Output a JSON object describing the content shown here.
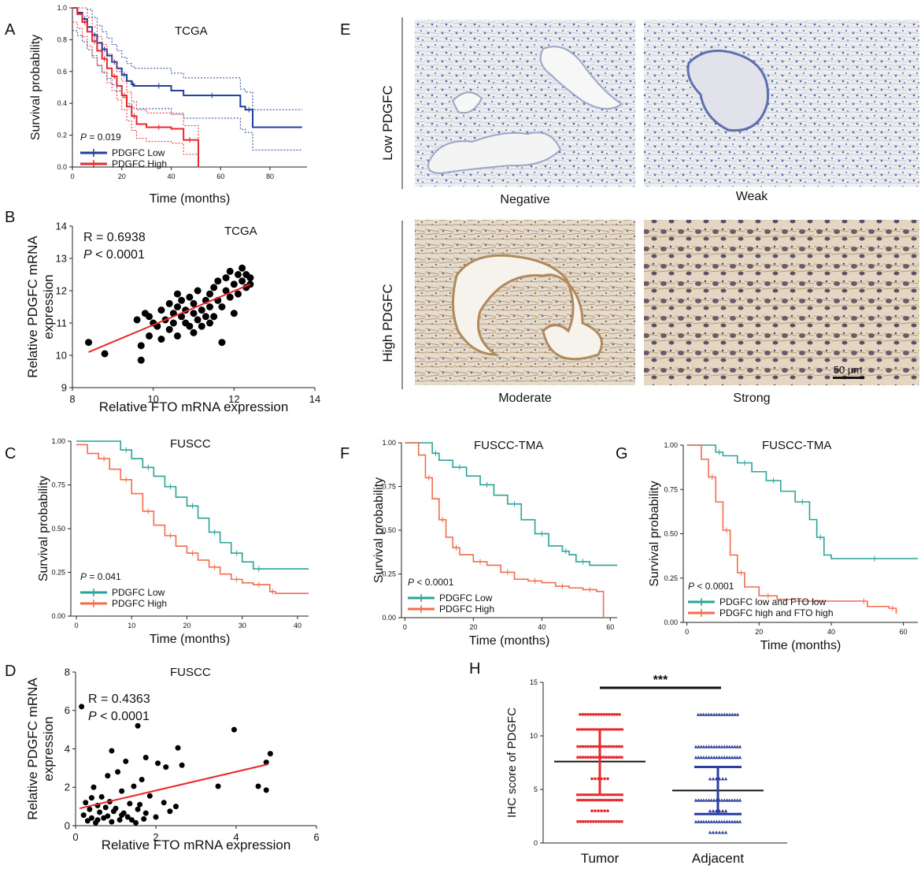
{
  "panels": {
    "A": {
      "letter": "A",
      "title": "TCGA",
      "xlabel": "Time (months)",
      "ylabel": "Survival probability",
      "pvalue_label": "P",
      "pvalue_text": " = 0.019"
    },
    "B": {
      "letter": "B",
      "title": "TCGA",
      "xlabel": "Relative FTO mRNA expression",
      "ylabel_line1": "Relative PDGFC mRNA",
      "ylabel_line2": "expression",
      "stat_r": "R = 0.6938",
      "stat_p_label": "P",
      "stat_p_text": " < 0.0001"
    },
    "C": {
      "letter": "C",
      "title": "FUSCC",
      "xlabel": "Time (months)",
      "ylabel": "Survival probability",
      "pvalue_label": "P",
      "pvalue_text": " = 0.041"
    },
    "D": {
      "letter": "D",
      "title": "FUSCC",
      "xlabel": "Relative FTO mRNA expression",
      "ylabel_line1": "Relative PDGFC mRNA",
      "ylabel_line2": "expression",
      "stat_r": "R = 0.4363",
      "stat_p_label": "P",
      "stat_p_text": " < 0.0001"
    },
    "E": {
      "letter": "E",
      "row_low": "Low PDGFC",
      "row_high": "High  PDGFC",
      "captions": [
        "Negative",
        "Weak",
        "Moderate",
        "Strong"
      ],
      "scalebar": "50 μm"
    },
    "F": {
      "letter": "F",
      "title": "FUSCC-TMA",
      "xlabel": "Time (months)",
      "ylabel": "Survival probability",
      "pvalue_label": "P",
      "pvalue_text": " < 0.0001"
    },
    "G": {
      "letter": "G",
      "title": "FUSCC-TMA",
      "xlabel": "Time (months)",
      "ylabel": "Survival probability",
      "pvalue_label": "P",
      "pvalue_text": " < 0.0001"
    },
    "H": {
      "letter": "H",
      "ylabel": "IHC score  of PDGFC",
      "significance": "***"
    }
  },
  "colors": {
    "low_tcga": "#1f3f99",
    "high_tcga": "#e8262b",
    "low_fuscc": "#2aa39a",
    "high_fuscc": "#f26c4f",
    "scatter_point": "#000000",
    "fit_line": "#e8262b",
    "tumor": "#e8262b",
    "adjacent": "#2c3fa0"
  },
  "chart_data": [
    {
      "id": "A",
      "type": "line",
      "title": "TCGA",
      "xlabel": "Time (months)",
      "ylabel": "Survival probability",
      "xlim": [
        0,
        95
      ],
      "ylim": [
        0,
        1
      ],
      "xticks": [
        0,
        20,
        40,
        60,
        80
      ],
      "yticks": [
        "0.0",
        "0.2",
        "0.4",
        "0.6",
        "0.8",
        "1.0"
      ],
      "series": [
        {
          "name": "PDGFC Low",
          "x": [
            0,
            2,
            4,
            6,
            8,
            10,
            12,
            14,
            16,
            18,
            20,
            22,
            24,
            25,
            30,
            40,
            45,
            68,
            70,
            73,
            93
          ],
          "y": [
            1,
            0.97,
            0.93,
            0.88,
            0.83,
            0.78,
            0.74,
            0.7,
            0.66,
            0.62,
            0.58,
            0.54,
            0.52,
            0.51,
            0.51,
            0.48,
            0.45,
            0.38,
            0.36,
            0.25,
            0.25
          ]
        },
        {
          "name": "PDGFC High",
          "x": [
            0,
            2,
            4,
            6,
            8,
            10,
            12,
            14,
            16,
            18,
            20,
            22,
            24,
            26,
            30,
            40,
            45,
            50,
            51
          ],
          "y": [
            1,
            0.96,
            0.91,
            0.85,
            0.79,
            0.73,
            0.68,
            0.62,
            0.57,
            0.51,
            0.45,
            0.38,
            0.32,
            0.27,
            0.25,
            0.24,
            0.17,
            0.17,
            0.0
          ]
        }
      ]
    },
    {
      "id": "B",
      "type": "scatter",
      "title": "TCGA",
      "xlabel": "Relative FTO mRNA expression",
      "ylabel": "Relative PDGFC mRNA expression",
      "xlim": [
        8,
        14
      ],
      "ylim": [
        9,
        14
      ],
      "xticks": [
        8,
        10,
        12,
        14
      ],
      "yticks": [
        9,
        10,
        11,
        12,
        13,
        14
      ],
      "fit": {
        "x": [
          8.4,
          12.4
        ],
        "y": [
          10.1,
          12.2
        ]
      },
      "points": [
        [
          8.4,
          10.4
        ],
        [
          8.8,
          10.05
        ],
        [
          9.7,
          10.3
        ],
        [
          9.7,
          9.85
        ],
        [
          9.6,
          11.1
        ],
        [
          9.8,
          11.3
        ],
        [
          9.9,
          11.2
        ],
        [
          10.0,
          11.0
        ],
        [
          9.9,
          10.6
        ],
        [
          10.1,
          10.9
        ],
        [
          10.2,
          11.4
        ],
        [
          10.3,
          11.1
        ],
        [
          10.4,
          10.8
        ],
        [
          10.4,
          11.6
        ],
        [
          10.5,
          11.3
        ],
        [
          10.5,
          11.0
        ],
        [
          10.6,
          11.5
        ],
        [
          10.6,
          10.6
        ],
        [
          10.7,
          11.2
        ],
        [
          10.7,
          11.7
        ],
        [
          10.8,
          11.0
        ],
        [
          10.8,
          11.4
        ],
        [
          10.9,
          11.8
        ],
        [
          10.9,
          10.9
        ],
        [
          11.0,
          11.3
        ],
        [
          11.0,
          11.6
        ],
        [
          11.1,
          11.1
        ],
        [
          11.1,
          12.0
        ],
        [
          11.2,
          11.4
        ],
        [
          11.2,
          10.9
        ],
        [
          11.3,
          11.7
        ],
        [
          11.3,
          11.2
        ],
        [
          11.4,
          11.9
        ],
        [
          11.4,
          11.5
        ],
        [
          11.5,
          12.1
        ],
        [
          11.5,
          11.2
        ],
        [
          11.6,
          11.7
        ],
        [
          11.6,
          12.3
        ],
        [
          11.7,
          11.5
        ],
        [
          11.7,
          10.4
        ],
        [
          11.8,
          12.0
        ],
        [
          11.8,
          12.4
        ],
        [
          11.9,
          11.8
        ],
        [
          11.9,
          12.6
        ],
        [
          12.0,
          12.2
        ],
        [
          12.0,
          11.3
        ],
        [
          12.1,
          12.5
        ],
        [
          12.1,
          11.9
        ],
        [
          12.2,
          12.3
        ],
        [
          12.2,
          12.7
        ],
        [
          12.3,
          12.1
        ],
        [
          12.3,
          12.5
        ],
        [
          12.4,
          12.4
        ],
        [
          12.4,
          12.2
        ],
        [
          11.0,
          10.7
        ],
        [
          10.2,
          10.5
        ],
        [
          10.6,
          11.9
        ],
        [
          11.4,
          11.0
        ]
      ]
    },
    {
      "id": "C",
      "type": "line",
      "title": "FUSCC",
      "xlabel": "Time (months)",
      "ylabel": "Survival probability",
      "xlim": [
        -1,
        42
      ],
      "ylim": [
        0,
        1
      ],
      "xticks": [
        0,
        10,
        20,
        30,
        40
      ],
      "yticks": [
        "0.00",
        "0.25",
        "0.50",
        "0.75",
        "1.00"
      ],
      "series": [
        {
          "name": "PDGFC Low",
          "x": [
            0,
            6,
            8,
            10,
            12,
            14,
            16,
            18,
            20,
            22,
            24,
            26,
            28,
            30,
            32,
            34,
            42
          ],
          "y": [
            1,
            1,
            0.95,
            0.9,
            0.85,
            0.8,
            0.74,
            0.68,
            0.63,
            0.56,
            0.48,
            0.42,
            0.36,
            0.31,
            0.27,
            0.27,
            0.27
          ]
        },
        {
          "name": "PDGFC High",
          "x": [
            0,
            2,
            4,
            6,
            8,
            10,
            12,
            14,
            16,
            18,
            20,
            22,
            24,
            26,
            28,
            30,
            32,
            34,
            35,
            36,
            42
          ],
          "y": [
            0.98,
            0.93,
            0.9,
            0.84,
            0.78,
            0.7,
            0.6,
            0.52,
            0.46,
            0.4,
            0.36,
            0.32,
            0.28,
            0.24,
            0.21,
            0.19,
            0.18,
            0.18,
            0.14,
            0.13,
            0.13
          ]
        }
      ]
    },
    {
      "id": "D",
      "type": "scatter",
      "title": "FUSCC",
      "xlabel": "Relative FTO mRNA expression",
      "ylabel": "Relative PDGFC mRNA expression",
      "xlim": [
        0,
        6
      ],
      "ylim": [
        0,
        8
      ],
      "xticks": [
        0,
        2,
        4,
        6
      ],
      "yticks": [
        0,
        2,
        4,
        6,
        8
      ],
      "fit": {
        "x": [
          0.1,
          4.8
        ],
        "y": [
          0.9,
          3.2
        ]
      },
      "points": [
        [
          0.15,
          6.2
        ],
        [
          1.55,
          5.2
        ],
        [
          3.95,
          5.0
        ],
        [
          0.9,
          3.9
        ],
        [
          2.55,
          4.05
        ],
        [
          4.85,
          3.75
        ],
        [
          4.75,
          3.3
        ],
        [
          4.55,
          2.05
        ],
        [
          4.75,
          1.85
        ],
        [
          3.55,
          2.05
        ],
        [
          2.25,
          3.05
        ],
        [
          2.65,
          3.15
        ],
        [
          2.05,
          3.25
        ],
        [
          1.75,
          3.55
        ],
        [
          1.25,
          3.35
        ],
        [
          1.05,
          2.8
        ],
        [
          1.65,
          2.4
        ],
        [
          0.8,
          2.6
        ],
        [
          1.15,
          1.8
        ],
        [
          1.45,
          2.05
        ],
        [
          0.45,
          2.0
        ],
        [
          0.65,
          1.5
        ],
        [
          1.85,
          1.55
        ],
        [
          2.2,
          1.2
        ],
        [
          0.25,
          1.2
        ],
        [
          0.35,
          0.85
        ],
        [
          0.55,
          1.05
        ],
        [
          0.75,
          0.95
        ],
        [
          0.95,
          0.75
        ],
        [
          1.15,
          0.55
        ],
        [
          1.35,
          1.15
        ],
        [
          1.55,
          0.85
        ],
        [
          1.75,
          0.65
        ],
        [
          2.0,
          0.45
        ],
        [
          2.35,
          0.75
        ],
        [
          0.3,
          0.25
        ],
        [
          0.5,
          0.15
        ],
        [
          0.7,
          0.4
        ],
        [
          0.9,
          0.2
        ],
        [
          1.1,
          0.3
        ],
        [
          1.3,
          0.45
        ],
        [
          1.5,
          0.15
        ],
        [
          1.7,
          0.35
        ],
        [
          0.2,
          0.55
        ],
        [
          0.4,
          0.4
        ],
        [
          0.6,
          0.7
        ],
        [
          0.8,
          0.5
        ],
        [
          1.0,
          0.9
        ],
        [
          1.2,
          0.65
        ],
        [
          1.4,
          0.3
        ],
        [
          0.55,
          0.3
        ],
        [
          0.85,
          1.25
        ],
        [
          1.6,
          1.1
        ],
        [
          2.5,
          1.0
        ],
        [
          0.4,
          1.45
        ]
      ]
    },
    {
      "id": "F",
      "type": "line",
      "title": "FUSCC-TMA",
      "xlabel": "Time (months)",
      "ylabel": "Survival probability",
      "xlim": [
        -1,
        62
      ],
      "ylim": [
        0,
        1
      ],
      "xticks": [
        0,
        20,
        40,
        60
      ],
      "yticks": [
        "0.00",
        "0.25",
        "0.50",
        "0.75",
        "1.00"
      ],
      "series": [
        {
          "name": "PDGFC Low",
          "x": [
            0,
            5,
            8,
            10,
            14,
            18,
            22,
            26,
            30,
            34,
            38,
            42,
            46,
            48,
            50,
            54,
            62
          ],
          "y": [
            1,
            1,
            0.94,
            0.9,
            0.86,
            0.81,
            0.76,
            0.7,
            0.65,
            0.56,
            0.48,
            0.41,
            0.38,
            0.36,
            0.32,
            0.3,
            0.3
          ]
        },
        {
          "name": "PDGFC High",
          "x": [
            0,
            4,
            6,
            8,
            10,
            12,
            14,
            16,
            20,
            24,
            28,
            32,
            36,
            40,
            44,
            48,
            52,
            56,
            58
          ],
          "y": [
            1,
            0.93,
            0.8,
            0.68,
            0.56,
            0.46,
            0.4,
            0.36,
            0.32,
            0.3,
            0.26,
            0.22,
            0.21,
            0.2,
            0.18,
            0.17,
            0.16,
            0.15,
            0.0
          ]
        }
      ]
    },
    {
      "id": "G",
      "type": "line",
      "title": "FUSCC-TMA",
      "xlabel": "Time (months)",
      "ylabel": "Survival probability",
      "xlim": [
        -1,
        64
      ],
      "ylim": [
        0,
        1
      ],
      "xticks": [
        0,
        20,
        40,
        60
      ],
      "yticks": [
        "0.00",
        "0.25",
        "0.50",
        "0.75",
        "1.00"
      ],
      "series": [
        {
          "name": "PDGFC low and FTO low",
          "x": [
            0,
            6,
            8,
            10,
            14,
            18,
            22,
            26,
            30,
            34,
            36,
            38,
            40,
            64
          ],
          "y": [
            1,
            1,
            0.96,
            0.94,
            0.9,
            0.85,
            0.8,
            0.74,
            0.68,
            0.58,
            0.48,
            0.38,
            0.36,
            0.36
          ]
        },
        {
          "name": "PDGFC high and FTO high",
          "x": [
            0,
            4,
            6,
            8,
            10,
            12,
            14,
            16,
            20,
            25,
            30,
            40,
            48,
            50,
            56,
            58
          ],
          "y": [
            1,
            0.92,
            0.82,
            0.68,
            0.52,
            0.38,
            0.28,
            0.2,
            0.15,
            0.13,
            0.12,
            0.12,
            0.12,
            0.09,
            0.08,
            0.05
          ]
        }
      ]
    },
    {
      "id": "H",
      "type": "scatter",
      "ylabel": "IHC score  of PDGFC",
      "ylim": [
        0,
        15
      ],
      "yticks": [
        0,
        5,
        10,
        15
      ],
      "categories": [
        "Tumor",
        "Adjacent"
      ],
      "values": [
        {
          "name": "Tumor",
          "mean": 7.6,
          "sd_low": 4.5,
          "sd_high": 10.6,
          "levels": [
            2,
            3,
            4,
            6,
            8,
            9,
            12
          ]
        },
        {
          "name": "Adjacent",
          "mean": 4.9,
          "sd_low": 2.7,
          "sd_high": 7.1,
          "levels": [
            1,
            2,
            3,
            4,
            6,
            8,
            9,
            12
          ]
        }
      ],
      "significance": "***"
    }
  ]
}
